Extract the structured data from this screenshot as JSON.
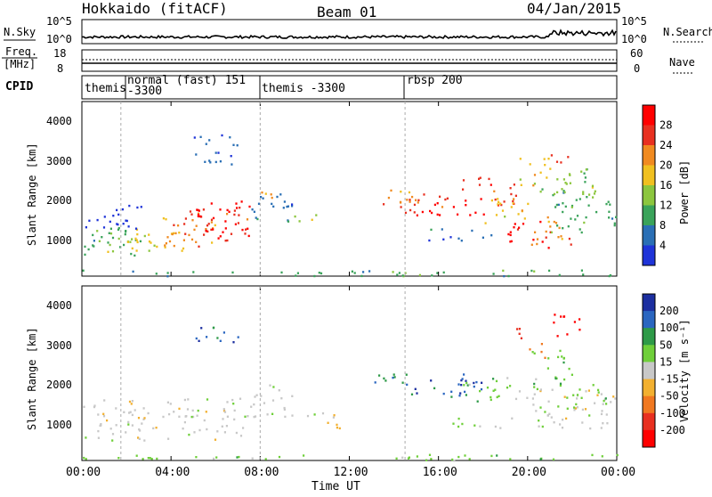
{
  "header": {
    "station": "Hokkaido (fitACF)",
    "beam": "Beam 01",
    "date": "04/Jan/2015"
  },
  "top_panels": {
    "nsky_label": "N.Sky",
    "nsky_ticks": [
      "10^5",
      "10^0"
    ],
    "nsearch_label": "N.Search",
    "nsearch_ticks": [
      "10^5",
      "10^0"
    ],
    "freq_label_1": "Freq.",
    "freq_label_2": "[MHz]",
    "freq_ticks": [
      "18",
      "8"
    ],
    "nave_label": "Nave",
    "nave_ticks": [
      "60",
      "0"
    ],
    "cpid_label": "CPID",
    "cpid_segments": [
      {
        "label": "themis",
        "start_hour": 0.0
      },
      {
        "label": "normal (fast) 151",
        "sub": "-3300",
        "start_hour": 1.75
      },
      {
        "label": "themis -3300",
        "start_hour": 8.0
      },
      {
        "label": "rbsp 200",
        "start_hour": 14.5
      }
    ]
  },
  "chart_data": [
    {
      "type": "heatmap",
      "name": "power",
      "ylabel": "Slant Range [km]",
      "ylim": [
        180,
        4600
      ],
      "yticks": [
        1000,
        2000,
        3000,
        4000
      ],
      "xlim": [
        0,
        24
      ],
      "colorbar_label": "Power [dB]",
      "colorbar_ticks": [
        "4",
        "8",
        "12",
        "16",
        "20",
        "24",
        "28"
      ],
      "colors": [
        "#1f34d8",
        "#2a6fb5",
        "#3aa35a",
        "#8cc63e",
        "#f0c020",
        "#f08a20",
        "#e83020",
        "#ff0000"
      ]
    },
    {
      "type": "heatmap",
      "name": "velocity",
      "ylabel": "Slant Range [km]",
      "ylim": [
        180,
        4600
      ],
      "yticks": [
        1000,
        2000,
        3000,
        4000
      ],
      "xlim": [
        0,
        24
      ],
      "xticks": [
        "00:00",
        "04:00",
        "08:00",
        "12:00",
        "16:00",
        "20:00",
        "00:00"
      ],
      "xlabel": "Time UT",
      "colorbar_label": "Velocity [m s⁻¹]",
      "colorbar_ticks": [
        "200",
        "100",
        "50",
        "15",
        "-15",
        "-50",
        "-100",
        "-200"
      ],
      "colors": [
        "#1c2fa0",
        "#2a66c0",
        "#2e9a48",
        "#6fcf3a",
        "#c8c8c8",
        "#f2b030",
        "#f07820",
        "#e83020",
        "#ff0000"
      ]
    }
  ]
}
